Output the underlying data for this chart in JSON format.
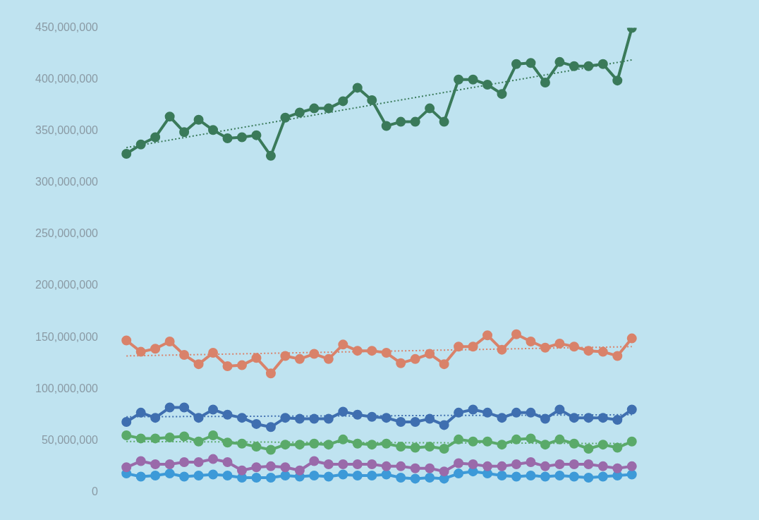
{
  "chart_data": {
    "type": "line",
    "categories": [
      null,
      null,
      null,
      null,
      null,
      null,
      null,
      null,
      null,
      null,
      null,
      null,
      null,
      null,
      null,
      null,
      null,
      null,
      null,
      null,
      null,
      null,
      null,
      null,
      null,
      null,
      null,
      null,
      null,
      null,
      null,
      null,
      null,
      null,
      null,
      null
    ],
    "ylim": [
      0,
      450000000
    ],
    "yticks": [
      {
        "value": 0,
        "label": "0"
      },
      {
        "value": 50000000,
        "label": "50,000,000"
      },
      {
        "value": 100000000,
        "label": "100,000,000"
      },
      {
        "value": 150000000,
        "label": "150,000,000"
      },
      {
        "value": 200000000,
        "label": "200,000,000"
      },
      {
        "value": 250000000,
        "label": "250,000,000"
      },
      {
        "value": 300000000,
        "label": "300,000,000"
      },
      {
        "value": 350000000,
        "label": "350,000,000"
      },
      {
        "value": 400000000,
        "label": "400,000,000"
      },
      {
        "value": 450000000,
        "label": "450,000,000"
      }
    ],
    "grid": false,
    "legend": false,
    "marker": "circle",
    "line_style": "solid",
    "series": [
      {
        "color": "#3a7a5a",
        "values": [
          328000000,
          337000000,
          344000000,
          364000000,
          349000000,
          361000000,
          351000000,
          343000000,
          344000000,
          346000000,
          326000000,
          363000000,
          368000000,
          372000000,
          372000000,
          379000000,
          392000000,
          380000000,
          355000000,
          359000000,
          359000000,
          372000000,
          359000000,
          400000000,
          400000000,
          395000000,
          386000000,
          415000000,
          416000000,
          397000000,
          417000000,
          413000000,
          413000000,
          415000000,
          399000000,
          450000000
        ]
      },
      {
        "color": "#d9826a",
        "values": [
          147000000,
          136000000,
          139000000,
          146000000,
          133000000,
          124000000,
          135000000,
          122000000,
          123000000,
          130000000,
          115000000,
          132000000,
          129000000,
          134000000,
          129000000,
          143000000,
          137000000,
          137000000,
          135000000,
          125000000,
          129000000,
          134000000,
          124000000,
          141000000,
          141000000,
          152000000,
          138000000,
          153000000,
          146000000,
          140000000,
          144000000,
          141000000,
          137000000,
          136000000,
          132000000,
          149000000
        ]
      },
      {
        "color": "#3f6fb0",
        "values": [
          68000000,
          77000000,
          72000000,
          82000000,
          82000000,
          72000000,
          80000000,
          75000000,
          72000000,
          66000000,
          63000000,
          72000000,
          71000000,
          71000000,
          71000000,
          78000000,
          75000000,
          73000000,
          72000000,
          68000000,
          68000000,
          71000000,
          65000000,
          77000000,
          80000000,
          77000000,
          72000000,
          77000000,
          77000000,
          71000000,
          80000000,
          72000000,
          72000000,
          72000000,
          70000000,
          80000000
        ]
      },
      {
        "color": "#5aaa6a",
        "values": [
          55000000,
          52000000,
          52000000,
          53000000,
          54000000,
          49000000,
          55000000,
          48000000,
          47000000,
          44000000,
          41000000,
          46000000,
          46000000,
          47000000,
          46000000,
          51000000,
          47000000,
          46000000,
          47000000,
          44000000,
          43000000,
          44000000,
          42000000,
          51000000,
          49000000,
          49000000,
          46000000,
          51000000,
          52000000,
          46000000,
          51000000,
          47000000,
          42000000,
          46000000,
          43000000,
          49000000
        ]
      },
      {
        "color": "#9a6aaa",
        "values": [
          24000000,
          30000000,
          27000000,
          27000000,
          29000000,
          29000000,
          32000000,
          29000000,
          21000000,
          24000000,
          25000000,
          24000000,
          21000000,
          30000000,
          27000000,
          27000000,
          27000000,
          27000000,
          25000000,
          25000000,
          23000000,
          23000000,
          20000000,
          28000000,
          27000000,
          25000000,
          25000000,
          27000000,
          29000000,
          25000000,
          27000000,
          27000000,
          27000000,
          25000000,
          23000000,
          25000000
        ]
      },
      {
        "color": "#3d9ad8",
        "values": [
          18000000,
          15000000,
          16000000,
          18000000,
          15000000,
          16000000,
          17000000,
          16000000,
          14000000,
          14000000,
          14000000,
          16000000,
          15000000,
          16000000,
          15000000,
          17000000,
          16000000,
          16000000,
          17000000,
          14000000,
          13000000,
          14000000,
          13000000,
          18000000,
          20000000,
          18000000,
          16000000,
          15000000,
          16000000,
          15000000,
          16000000,
          15000000,
          14000000,
          15000000,
          16000000,
          17000000
        ]
      },
      {
        "color": "#3a7a5a",
        "line_style": "dotted",
        "marker": "none",
        "values": [
          334000000,
          null,
          null,
          null,
          null,
          null,
          null,
          null,
          null,
          null,
          null,
          null,
          null,
          null,
          null,
          null,
          null,
          null,
          null,
          null,
          null,
          null,
          null,
          null,
          null,
          null,
          null,
          null,
          null,
          null,
          null,
          null,
          null,
          null,
          null,
          419000000
        ]
      },
      {
        "color": "#d9826a",
        "line_style": "dotted",
        "marker": "none",
        "values": [
          132000000,
          null,
          null,
          null,
          null,
          null,
          null,
          null,
          null,
          null,
          null,
          null,
          null,
          null,
          null,
          null,
          null,
          null,
          null,
          null,
          null,
          null,
          null,
          null,
          null,
          null,
          null,
          null,
          null,
          null,
          null,
          null,
          null,
          null,
          null,
          141000000
        ]
      },
      {
        "color": "#3f6fb0",
        "line_style": "dotted",
        "marker": "none",
        "values": [
          73000000,
          null,
          null,
          null,
          null,
          null,
          null,
          null,
          null,
          null,
          null,
          null,
          null,
          null,
          null,
          null,
          null,
          null,
          null,
          null,
          null,
          null,
          null,
          null,
          null,
          null,
          null,
          null,
          null,
          null,
          null,
          null,
          null,
          null,
          null,
          75000000
        ]
      },
      {
        "color": "#5aaa6a",
        "line_style": "dotted",
        "marker": "none",
        "values": [
          49000000,
          null,
          null,
          null,
          null,
          null,
          null,
          null,
          null,
          null,
          null,
          null,
          null,
          null,
          null,
          null,
          null,
          null,
          null,
          null,
          null,
          null,
          null,
          null,
          null,
          null,
          null,
          null,
          null,
          null,
          null,
          null,
          null,
          null,
          null,
          47000000
        ]
      }
    ]
  }
}
